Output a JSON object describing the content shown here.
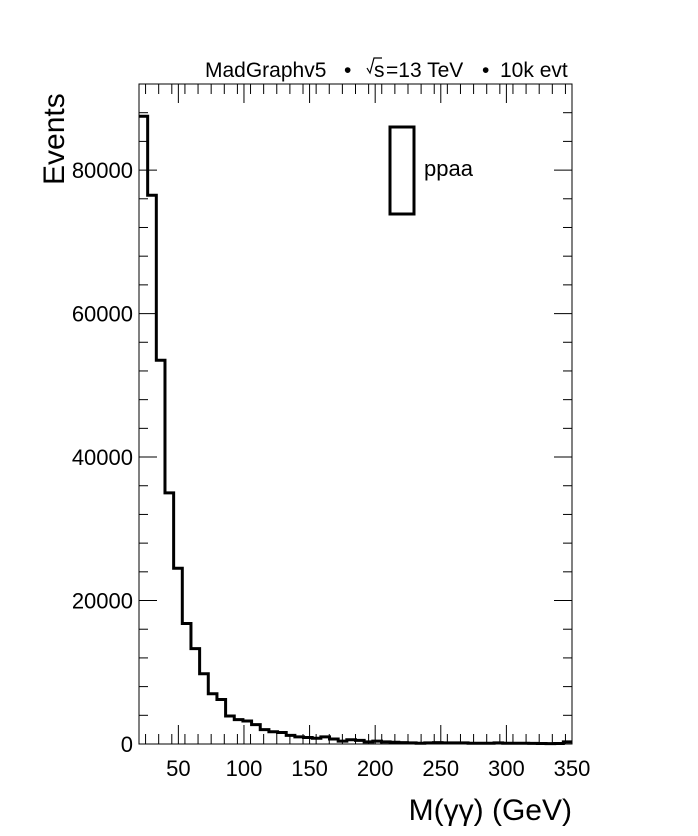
{
  "header": {
    "generator": "MadGraphv5",
    "sqrt_s": "s",
    "energy": "=13 TeV",
    "events": "10k evt",
    "bullet": "•"
  },
  "chart_data": {
    "type": "histogram",
    "xlabel": "M(γγ) (GeV)",
    "ylabel": "Events",
    "xlim": [
      20,
      350
    ],
    "ylim": [
      0,
      92000
    ],
    "x_ticks": [
      50,
      100,
      150,
      200,
      250,
      300,
      350
    ],
    "y_ticks": [
      0,
      20000,
      40000,
      60000,
      80000
    ],
    "bin_width": 6.6,
    "bin_edges_start": 20,
    "series": [
      {
        "name": "ppaa",
        "color": "#000000",
        "values": [
          87500,
          76500,
          53500,
          35000,
          24500,
          16800,
          13300,
          9800,
          7000,
          6200,
          3900,
          3400,
          3200,
          2700,
          2000,
          1700,
          1600,
          1200,
          1000,
          900,
          800,
          1000,
          700,
          400,
          600,
          500,
          300,
          400,
          300,
          250,
          200,
          150,
          100,
          150,
          200,
          150,
          150,
          150,
          100,
          100,
          100,
          150,
          100,
          100,
          100,
          80,
          70,
          60,
          70,
          300
        ]
      }
    ],
    "legend": {
      "position": "top-right",
      "entries": [
        "ppaa"
      ]
    },
    "grid": false
  }
}
